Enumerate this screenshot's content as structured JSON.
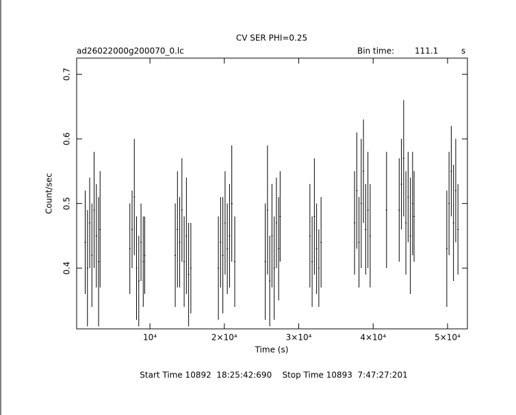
{
  "chart_data": {
    "type": "errorbar",
    "title": "CV SER PHI=0.25",
    "subtitle": "ad26022000g200070_0.lc",
    "bin_label": "Bin time:",
    "bin_value": "111.1",
    "bin_unit": "s",
    "x_label": "Time (s)",
    "y_label": "Count/sec",
    "footer": "Start Time 10892  18:25:42:690    Stop Time 10893  7:47:27:201",
    "xlim": [
      150,
      52670
    ],
    "ylim": [
      0.306,
      0.725
    ],
    "xticks": [
      {
        "value": 10000,
        "label": "10⁴"
      },
      {
        "value": 20000,
        "label": "2×10⁴"
      },
      {
        "value": 30000,
        "label": "3×10⁴"
      },
      {
        "value": 40000,
        "label": "4×10⁴"
      },
      {
        "value": 50000,
        "label": "5×10⁴"
      }
    ],
    "yticks": [
      0.4,
      0.5,
      0.6,
      0.7
    ],
    "color": "#000000",
    "x": [
      1300,
      1600,
      1900,
      2200,
      2500,
      2800,
      3100,
      3300,
      7300,
      7600,
      7900,
      8200,
      8500,
      8800,
      9100,
      9300,
      13400,
      13700,
      14000,
      14300,
      14600,
      14900,
      15200,
      15500,
      19200,
      19500,
      19800,
      20100,
      20400,
      20700,
      21000,
      21400,
      25500,
      25800,
      26100,
      26400,
      26700,
      27000,
      27300,
      27500,
      31500,
      31800,
      32100,
      32400,
      32700,
      33000,
      37500,
      37800,
      38100,
      38400,
      38700,
      39000,
      39300,
      39600,
      41800,
      43500,
      43800,
      44100,
      44400,
      44700,
      45000,
      45300,
      45500,
      49900,
      50200,
      50500,
      50800,
      51100,
      51400
    ],
    "values": [
      0.44,
      0.4,
      0.47,
      0.42,
      0.49,
      0.45,
      0.41,
      0.46,
      0.43,
      0.46,
      0.51,
      0.4,
      0.38,
      0.44,
      0.41,
      0.42,
      0.42,
      0.46,
      0.44,
      0.49,
      0.41,
      0.45,
      0.39,
      0.4,
      0.4,
      0.44,
      0.42,
      0.47,
      0.43,
      0.45,
      0.5,
      0.41,
      0.41,
      0.49,
      0.38,
      0.45,
      0.4,
      0.47,
      0.43,
      0.48,
      0.45,
      0.41,
      0.48,
      0.43,
      0.4,
      0.44,
      0.47,
      0.52,
      0.44,
      0.5,
      0.55,
      0.46,
      0.49,
      0.45,
      0.49,
      0.49,
      0.53,
      0.57,
      0.47,
      0.51,
      0.45,
      0.5,
      0.48,
      0.43,
      0.5,
      0.55,
      0.47,
      0.52,
      0.46
    ],
    "errors": [
      0.08,
      0.09,
      0.07,
      0.08,
      0.09,
      0.08,
      0.1,
      0.09,
      0.07,
      0.06,
      0.09,
      0.08,
      0.07,
      0.06,
      0.07,
      0.06,
      0.08,
      0.09,
      0.07,
      0.08,
      0.07,
      0.09,
      0.08,
      0.07,
      0.08,
      0.07,
      0.09,
      0.08,
      0.07,
      0.08,
      0.09,
      0.07,
      0.09,
      0.1,
      0.07,
      0.08,
      0.08,
      0.07,
      0.08,
      0.07,
      0.08,
      0.07,
      0.09,
      0.07,
      0.06,
      0.07,
      0.08,
      0.09,
      0.07,
      0.1,
      0.08,
      0.07,
      0.09,
      0.08,
      0.09,
      0.08,
      0.07,
      0.09,
      0.08,
      0.07,
      0.09,
      0.08,
      0.07,
      0.09,
      0.08,
      0.07,
      0.09,
      0.08,
      0.07
    ]
  }
}
